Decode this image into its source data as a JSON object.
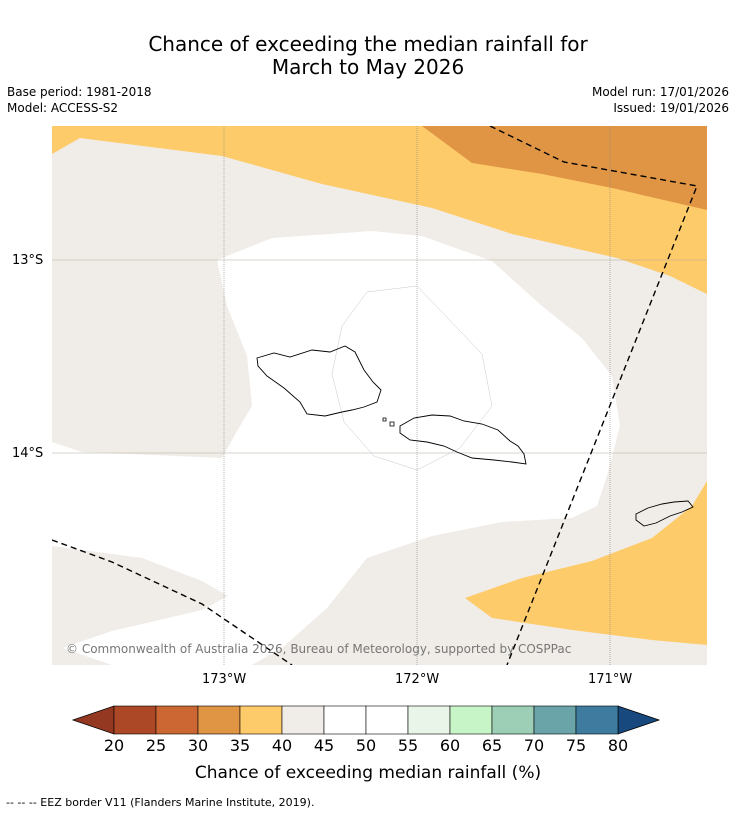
{
  "title": {
    "line1": "Chance of exceeding the median rainfall for",
    "line2": "March to May 2026"
  },
  "meta": {
    "base_period": "Base period: 1981-2018",
    "model": "Model: ACCESS-S2",
    "model_run": "Model run: 17/01/2026",
    "issued": "Issued: 19/01/2026"
  },
  "map": {
    "lat_labels": [
      "13°S",
      "14°S"
    ],
    "lon_labels": [
      "173°W",
      "172°W",
      "171°W"
    ],
    "copyright": "© Commonwealth of Australia 2026, Bureau of Meteorology, supported by COSPPac",
    "colors": {
      "c35_40": "#fecb6a",
      "c30_35": "#e09545",
      "c40_45": "#f0ece7",
      "c45_55": "#ffffff"
    }
  },
  "colorbar": {
    "ticks": [
      "20",
      "25",
      "30",
      "35",
      "40",
      "45",
      "50",
      "55",
      "60",
      "65",
      "70",
      "75",
      "80"
    ],
    "colors": [
      "#ad4826",
      "#cc6633",
      "#e09545",
      "#fecb6a",
      "#f0ece7",
      "#ffffff",
      "#ffffff",
      "#e8f5e8",
      "#c8f5c8",
      "#9ccfb6",
      "#6aa3a8",
      "#3f7b9e"
    ],
    "under_color": "#953822",
    "over_color": "#17497f",
    "label": "Chance of exceeding median rainfall (%)"
  },
  "footer": "--  --  -- EEZ border V11 (Flanders Marine Institute, 2019)."
}
